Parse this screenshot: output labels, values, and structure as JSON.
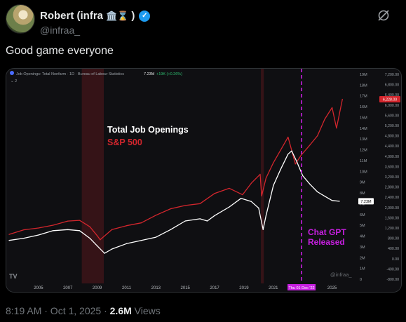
{
  "author": {
    "name": "Robert (infra",
    "name_suffix": ")",
    "emoji_icons": "🏛️⌛",
    "handle": "@infraa_",
    "verified": true
  },
  "tweet": {
    "text": "Good game everyone"
  },
  "chart_header": {
    "title": "Job Openings: Total Nonfarm · 1D · Bureau of Labour Statistics",
    "value_text": "7.23M",
    "change_text": "+19K (+0.26%)",
    "collapse_glyph": "2"
  },
  "chart_labels": {
    "legend_series_1": "Total Job Openings",
    "legend_series_2": "S&P 500",
    "annotation": "Chat GPT Released",
    "annotation_date": "Thu 01 Dec '22",
    "watermark": "@infraa_",
    "logo": "TV",
    "last_value_jobs": "7.23M",
    "last_value_sp": "6,228.00"
  },
  "colors": {
    "jobs_line": "#ffffff",
    "sp_line": "#d3262d",
    "annotation": "#c71fe0",
    "recession_shade": "#3a1418",
    "chart_bg": "#0f0f12"
  },
  "chart_data": {
    "type": "line",
    "x_ticks": [
      "2005",
      "2007",
      "2009",
      "2011",
      "2013",
      "2015",
      "2017",
      "2019",
      "2021",
      "2023",
      "2025"
    ],
    "left_axis_ticks": [
      "19M",
      "18M",
      "17M",
      "16M",
      "15M",
      "14M",
      "13M",
      "12M",
      "11M",
      "10M",
      "9M",
      "8M",
      "7M",
      "6M",
      "5M",
      "4M",
      "3M",
      "2M",
      "1M",
      "0"
    ],
    "right_axis_ticks": [
      "7,200.00",
      "6,800.00",
      "6,400.00",
      "6,000.00",
      "5,600.00",
      "5,200.00",
      "4,800.00",
      "4,400.00",
      "4,000.00",
      "3,600.00",
      "3,200.00",
      "2,800.00",
      "2,400.00",
      "2,000.00",
      "1,600.00",
      "1,200.00",
      "800.00",
      "400.00",
      "0.00",
      "-400.00",
      "-800.00"
    ],
    "left_ylim": [
      0,
      19
    ],
    "right_ylim": [
      -800,
      7200
    ],
    "xlim": [
      2003,
      2026.5
    ],
    "recessions": [
      [
        2007.95,
        2009.45
      ],
      [
        2020.15,
        2020.35
      ]
    ],
    "annotation_x": 2022.92,
    "series": [
      {
        "name": "Total Job Openings",
        "axis": "left",
        "x": [
          2003.0,
          2004.0,
          2005.0,
          2006.0,
          2007.0,
          2007.8,
          2008.5,
          2009.0,
          2009.5,
          2010.0,
          2011.0,
          2012.0,
          2013.0,
          2014.0,
          2015.0,
          2016.0,
          2016.5,
          2017.0,
          2018.0,
          2018.8,
          2019.5,
          2020.0,
          2020.3,
          2020.5,
          2021.0,
          2021.5,
          2022.0,
          2022.25,
          2022.6,
          2023.0,
          2023.5,
          2024.0,
          2024.5,
          2025.0,
          2025.5
        ],
        "y": [
          3.6,
          3.8,
          4.1,
          4.5,
          4.6,
          4.5,
          3.8,
          3.1,
          2.4,
          2.8,
          3.3,
          3.6,
          3.9,
          4.6,
          5.4,
          5.6,
          5.4,
          5.9,
          6.7,
          7.5,
          7.2,
          6.6,
          4.6,
          5.9,
          8.7,
          10.2,
          11.6,
          11.9,
          10.9,
          9.6,
          8.8,
          8.1,
          7.7,
          7.3,
          7.23
        ]
      },
      {
        "name": "S&P 500",
        "axis": "right",
        "x": [
          2003.0,
          2004.0,
          2005.0,
          2006.0,
          2007.0,
          2007.8,
          2008.5,
          2009.0,
          2009.2,
          2010.0,
          2011.0,
          2012.0,
          2013.0,
          2014.0,
          2015.0,
          2016.0,
          2017.0,
          2018.0,
          2018.9,
          2019.5,
          2020.1,
          2020.2,
          2020.5,
          2021.0,
          2022.0,
          2022.5,
          2022.9,
          2023.5,
          2024.0,
          2024.5,
          2025.0,
          2025.3,
          2025.7
        ],
        "y": [
          950,
          1130,
          1200,
          1310,
          1470,
          1500,
          1250,
          900,
          740,
          1140,
          1290,
          1400,
          1700,
          1950,
          2080,
          2150,
          2550,
          2750,
          2500,
          2950,
          3300,
          2450,
          3150,
          3750,
          4750,
          3700,
          4050,
          4450,
          4800,
          5450,
          5900,
          5100,
          6228
        ]
      }
    ]
  }
}
